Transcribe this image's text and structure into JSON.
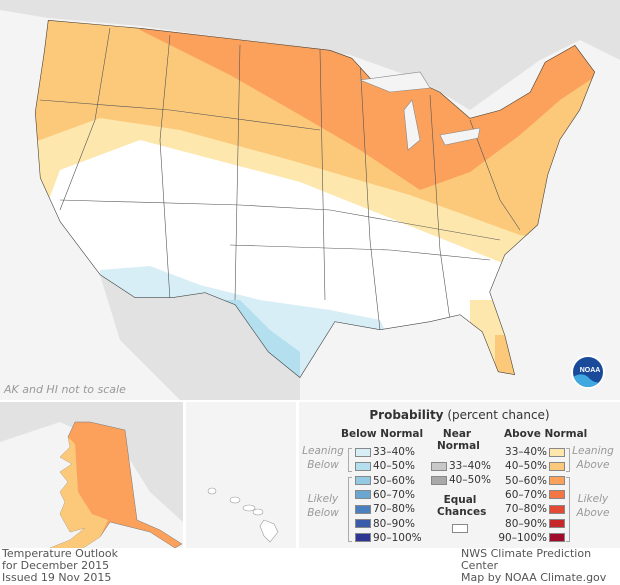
{
  "map": {
    "scale_note": "AK and HI not to scale",
    "logo": "NOAA"
  },
  "legend": {
    "title_bold": "Probability",
    "title_rest": " (percent chance)",
    "below_header": "Below Normal",
    "near_header": "Near Normal",
    "above_header": "Above Normal",
    "leaning_below": "Leaning Below",
    "likely_below": "Likely Below",
    "leaning_above": "Leaning Above",
    "likely_above": "Likely Above",
    "equal_chances": "Equal Chances",
    "below": [
      {
        "label": "33–40%",
        "color": "#d7eef6"
      },
      {
        "label": "40–50%",
        "color": "#b3dfee"
      },
      {
        "label": "50–60%",
        "color": "#93c9e3"
      },
      {
        "label": "60–70%",
        "color": "#6aa6d2"
      },
      {
        "label": "70–80%",
        "color": "#4a80c0"
      },
      {
        "label": "80–90%",
        "color": "#3a5aaa"
      },
      {
        "label": "90–100%",
        "color": "#2e3592"
      }
    ],
    "near": [
      {
        "label": "33–40%",
        "color": "#c8c8c8"
      },
      {
        "label": "40–50%",
        "color": "#a8a8a8"
      }
    ],
    "above": [
      {
        "label": "33–40%",
        "color": "#fde7ad"
      },
      {
        "label": "40–50%",
        "color": "#fcc97a"
      },
      {
        "label": "50–60%",
        "color": "#fba15c"
      },
      {
        "label": "60–70%",
        "color": "#f57645"
      },
      {
        "label": "70–80%",
        "color": "#e34a35"
      },
      {
        "label": "80–90%",
        "color": "#c8272a"
      },
      {
        "label": "90–100%",
        "color": "#a20a2a"
      }
    ]
  },
  "footer": {
    "left": "Temperature Outlook\nfor December 2015\nIssued 19 Nov 2015",
    "right": "NWS Climate Prediction Center\nMap by NOAA Climate.gov"
  }
}
